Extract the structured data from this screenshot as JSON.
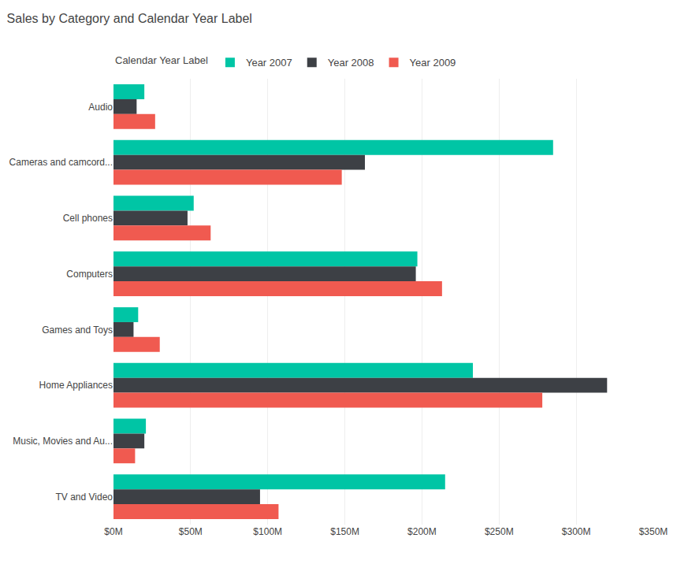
{
  "chart_data": {
    "type": "bar",
    "orientation": "horizontal",
    "title": "Sales by Category and Calendar Year Label",
    "legend_title": "Calendar Year Label",
    "legend": "top-left",
    "categories": [
      "Audio",
      "Cameras and camcord...",
      "Cell phones",
      "Computers",
      "Games and Toys",
      "Home Appliances",
      "Music, Movies and Au...",
      "TV and Video"
    ],
    "series": [
      {
        "name": "Year 2007",
        "color": "#00C5A5",
        "values": [
          20,
          285,
          52,
          197,
          16,
          233,
          21,
          215
        ]
      },
      {
        "name": "Year 2008",
        "color": "#3D4045",
        "values": [
          15,
          163,
          48,
          196,
          13,
          320,
          20,
          95
        ]
      },
      {
        "name": "Year 2009",
        "color": "#F05A50",
        "values": [
          27,
          148,
          63,
          213,
          30,
          278,
          14,
          107
        ]
      }
    ],
    "xlim": [
      0,
      350
    ],
    "xticks": [
      {
        "value": 0,
        "label": "$0M"
      },
      {
        "value": 50,
        "label": "$50M"
      },
      {
        "value": 100,
        "label": "$100M"
      },
      {
        "value": 150,
        "label": "$150M"
      },
      {
        "value": 200,
        "label": "$200M"
      },
      {
        "value": 250,
        "label": "$250M"
      },
      {
        "value": 300,
        "label": "$300M"
      },
      {
        "value": 350,
        "label": "$350M"
      }
    ],
    "grid": true
  }
}
